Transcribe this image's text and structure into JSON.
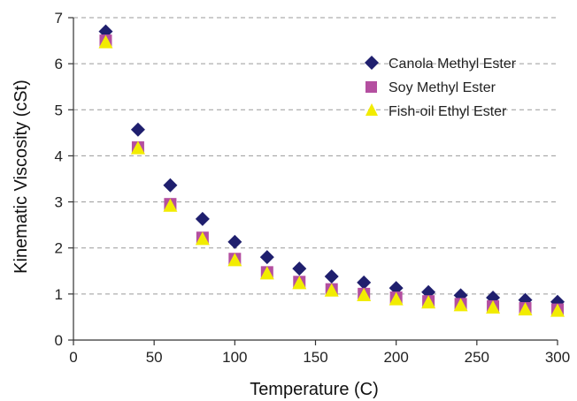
{
  "chart_data": {
    "type": "scatter",
    "title": "",
    "xlabel": "Temperature (C)",
    "ylabel": "Kinematic Viscosity (cSt)",
    "xlim": [
      0,
      300
    ],
    "ylim": [
      0,
      7
    ],
    "xticks": [
      0,
      50,
      100,
      150,
      200,
      250,
      300
    ],
    "yticks": [
      0,
      1,
      2,
      3,
      4,
      5,
      6,
      7
    ],
    "grid": "horizontal dashed",
    "legend_position": "top-right",
    "x": [
      20,
      40,
      60,
      80,
      100,
      120,
      140,
      160,
      180,
      200,
      220,
      240,
      260,
      280,
      300
    ],
    "series": [
      {
        "name": "Canola Methyl Ester",
        "marker": "diamond",
        "color": "#1f1f6e",
        "values": [
          6.7,
          4.57,
          3.36,
          2.63,
          2.13,
          1.8,
          1.55,
          1.38,
          1.25,
          1.13,
          1.04,
          0.97,
          0.92,
          0.87,
          0.83
        ]
      },
      {
        "name": "Soy Methyl Ester",
        "marker": "square",
        "color": "#b44fa0",
        "values": [
          6.5,
          4.18,
          2.95,
          2.22,
          1.76,
          1.47,
          1.26,
          1.1,
          1.0,
          0.92,
          0.84,
          0.78,
          0.73,
          0.69,
          0.66
        ]
      },
      {
        "name": "Fish-oil Ethyl Ester",
        "marker": "triangle",
        "color": "#f2ec00",
        "values": [
          6.45,
          4.15,
          2.9,
          2.18,
          1.72,
          1.43,
          1.22,
          1.06,
          0.96,
          0.87,
          0.8,
          0.74,
          0.69,
          0.65,
          0.62
        ]
      }
    ]
  }
}
